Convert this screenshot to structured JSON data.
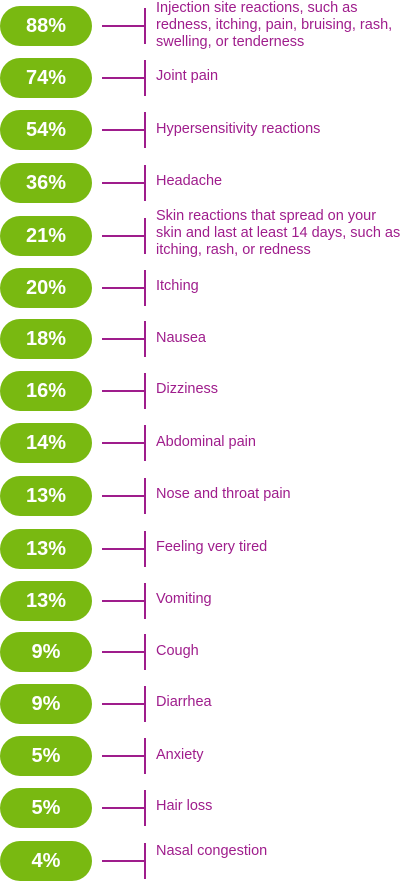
{
  "colors": {
    "pill_background": "#79b911",
    "pill_text": "#ffffff",
    "label_text": "#9f1d8c",
    "connector": "#9f1d8c"
  },
  "items": [
    {
      "value": "88%",
      "label": "Injection site reactions, such as redness, itching, pain, bruising, rash, swelling, or tenderness"
    },
    {
      "value": "74%",
      "label": "Joint pain"
    },
    {
      "value": "54%",
      "label": "Hypersensitivity reactions"
    },
    {
      "value": "36%",
      "label": "Headache"
    },
    {
      "value": "21%",
      "label": "Skin reactions that spread on your skin and last at least 14 days, such as itching, rash, or redness"
    },
    {
      "value": "20%",
      "label": "Itching"
    },
    {
      "value": "18%",
      "label": "Nausea"
    },
    {
      "value": "16%",
      "label": "Dizziness"
    },
    {
      "value": "14%",
      "label": "Abdominal pain"
    },
    {
      "value": "13%",
      "label": "Nose and throat pain"
    },
    {
      "value": "13%",
      "label": "Feeling very tired"
    },
    {
      "value": "13%",
      "label": "Vomiting"
    },
    {
      "value": "9%",
      "label": "Cough"
    },
    {
      "value": "9%",
      "label": "Diarrhea"
    },
    {
      "value": "5%",
      "label": "Anxiety"
    },
    {
      "value": "5%",
      "label": "Hair loss"
    },
    {
      "value": "4%",
      "label": "Nasal congestion"
    }
  ]
}
